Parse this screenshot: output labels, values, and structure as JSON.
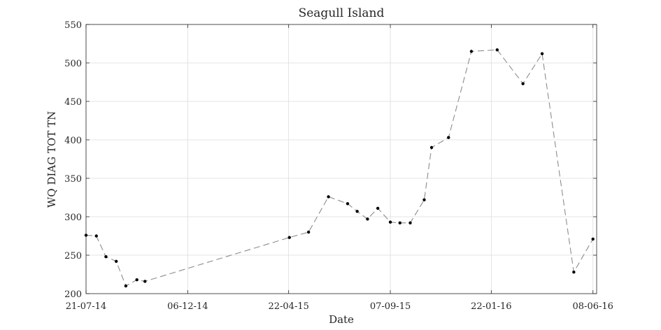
{
  "chart_data": {
    "type": "line",
    "title": "Seagull Island",
    "xlabel": "Date",
    "ylabel": "WQ DIAG TOT TN",
    "ylim": [
      200,
      550
    ],
    "xlim": [
      "2014-07-21",
      "2016-06-13"
    ],
    "yticks": [
      200,
      250,
      300,
      350,
      400,
      450,
      500,
      550
    ],
    "xticks": [
      {
        "date": "2014-07-21",
        "label": "21-07-14"
      },
      {
        "date": "2014-12-06",
        "label": "06-12-14"
      },
      {
        "date": "2015-04-22",
        "label": "22-04-15"
      },
      {
        "date": "2015-09-07",
        "label": "07-09-15"
      },
      {
        "date": "2016-01-22",
        "label": "22-01-16"
      },
      {
        "date": "2016-06-08",
        "label": "08-06-16"
      }
    ],
    "grid": true,
    "line_style": "dashed",
    "line_color": "#8c8c8c",
    "marker_color": "#000000",
    "series": [
      {
        "points": [
          {
            "x": "2014-07-21",
            "y": 276
          },
          {
            "x": "2014-08-04",
            "y": 275
          },
          {
            "x": "2014-08-17",
            "y": 248
          },
          {
            "x": "2014-08-31",
            "y": 242
          },
          {
            "x": "2014-09-13",
            "y": 210
          },
          {
            "x": "2014-09-28",
            "y": 218
          },
          {
            "x": "2014-10-09",
            "y": 216
          },
          {
            "x": "2015-04-23",
            "y": 273
          },
          {
            "x": "2015-05-19",
            "y": 280
          },
          {
            "x": "2015-06-15",
            "y": 326
          },
          {
            "x": "2015-07-11",
            "y": 317
          },
          {
            "x": "2015-07-24",
            "y": 307
          },
          {
            "x": "2015-08-07",
            "y": 297
          },
          {
            "x": "2015-08-21",
            "y": 311
          },
          {
            "x": "2015-09-07",
            "y": 293
          },
          {
            "x": "2015-09-20",
            "y": 292
          },
          {
            "x": "2015-10-04",
            "y": 292
          },
          {
            "x": "2015-10-23",
            "y": 322
          },
          {
            "x": "2015-11-02",
            "y": 390
          },
          {
            "x": "2015-11-25",
            "y": 403
          },
          {
            "x": "2015-12-26",
            "y": 515
          },
          {
            "x": "2016-01-30",
            "y": 517
          },
          {
            "x": "2016-03-05",
            "y": 473
          },
          {
            "x": "2016-03-31",
            "y": 512
          },
          {
            "x": "2016-05-13",
            "y": 228
          },
          {
            "x": "2016-06-08",
            "y": 271
          }
        ]
      }
    ]
  }
}
